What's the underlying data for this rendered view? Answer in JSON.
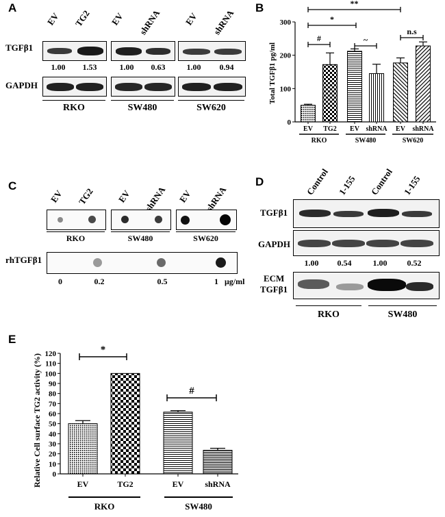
{
  "panels": {
    "A": {
      "letter": "A",
      "lane_labels": [
        "EV",
        "TG2",
        "EV",
        "shRNA",
        "EV",
        "shRNA"
      ],
      "row1_label": "TGFβ1",
      "row2_label": "GAPDH",
      "quant": [
        "1.00",
        "1.53",
        "1.00",
        "0.63",
        "1.00",
        "0.94"
      ],
      "cell_lines": [
        "RKO",
        "SW480",
        "SW620"
      ]
    },
    "C": {
      "letter": "C",
      "lane_labels": [
        "EV",
        "TG2",
        "EV",
        "shRNA",
        "EV",
        "shRNA"
      ],
      "cell_lines": [
        "RKO",
        "SW480",
        "SW620"
      ],
      "standard_label": "rhTGFβ1",
      "standard_conc": [
        "0",
        "0.2",
        "0.5",
        "1"
      ],
      "standard_unit": "μg/ml"
    },
    "D": {
      "letter": "D",
      "lane_labels": [
        "Control",
        "1-155",
        "Control",
        "1-155"
      ],
      "row1_label": "TGFβ1",
      "row2_label": "GAPDH",
      "quant": [
        "1.00",
        "0.54",
        "1.00",
        "0.52"
      ],
      "row3_label_a": "ECM",
      "row3_label_b": "TGFβ1",
      "cell_lines": [
        "RKO",
        "SW480"
      ]
    }
  },
  "chart_data": [
    {
      "panel": "B",
      "type": "bar",
      "ylabel": "Total TGFβ1 pg/ml",
      "ylim": [
        0,
        300
      ],
      "yticks": [
        0,
        100,
        200,
        300
      ],
      "categories": [
        "EV",
        "TG2",
        "EV",
        "shRNA",
        "EV",
        "shRNA"
      ],
      "groups": [
        "RKO",
        "SW480",
        "SW620"
      ],
      "values": [
        50,
        172,
        212,
        145,
        177,
        228
      ],
      "errors": [
        3,
        35,
        7,
        28,
        15,
        12
      ],
      "significance": [
        "#",
        "~",
        "n.s",
        "*",
        "**"
      ]
    },
    {
      "panel": "E",
      "type": "bar",
      "ylabel": "Relative Cell surface TG2 activity (%)",
      "ylim": [
        0,
        120
      ],
      "yticks": [
        0,
        10,
        20,
        30,
        40,
        50,
        60,
        70,
        80,
        90,
        100,
        110,
        120
      ],
      "categories": [
        "EV",
        "TG2",
        "EV",
        "shRNA"
      ],
      "groups": [
        "RKO",
        "SW480"
      ],
      "values": [
        50,
        100,
        61.5,
        23.5
      ],
      "errors": [
        3,
        0,
        1.5,
        2
      ],
      "significance": [
        "*",
        "#"
      ]
    }
  ]
}
